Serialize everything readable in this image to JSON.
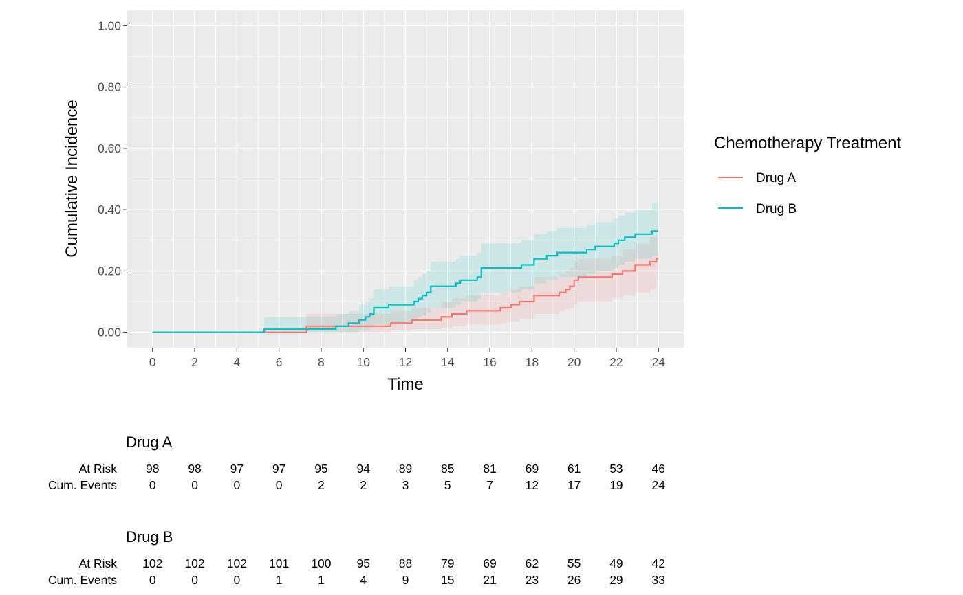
{
  "chart_data": {
    "type": "line",
    "step": true,
    "xlabel": "Time",
    "ylabel": "Cumulative Incidence",
    "xlim": [
      -1.2,
      25.2
    ],
    "ylim": [
      -0.05,
      1.05
    ],
    "x_ticks": [
      0,
      2,
      4,
      6,
      8,
      10,
      12,
      14,
      16,
      18,
      20,
      22,
      24
    ],
    "x_tick_labels": [
      "0",
      "2",
      "4",
      "6",
      "8",
      "10",
      "12",
      "14",
      "16",
      "18",
      "20",
      "22",
      "24"
    ],
    "y_ticks": [
      0,
      0.2,
      0.4,
      0.6,
      0.8,
      1.0
    ],
    "y_tick_labels": [
      "0.00",
      "0.20",
      "0.40",
      "0.60",
      "0.80",
      "1.00"
    ],
    "grid": true,
    "background": "#ebebeb",
    "legend": {
      "title": "Chemotherapy Treatment",
      "position": "right"
    },
    "series": [
      {
        "name": "Drug A",
        "color": "#f8766d",
        "x": [
          0,
          7.3,
          8.9,
          11.3,
          12.3,
          13.7,
          14.2,
          14.9,
          16.5,
          17.0,
          17.4,
          18.1,
          19.3,
          19.6,
          19.8,
          20.0,
          20.2,
          21.8,
          22.3,
          22.9,
          23.6,
          23.9
        ],
        "y": [
          0,
          0.02,
          0.02,
          0.03,
          0.04,
          0.05,
          0.06,
          0.07,
          0.08,
          0.09,
          0.1,
          0.12,
          0.13,
          0.14,
          0.15,
          0.17,
          0.18,
          0.19,
          0.2,
          0.22,
          0.23,
          0.24
        ],
        "lower": [
          0,
          0.0,
          0.0,
          0.005,
          0.01,
          0.015,
          0.02,
          0.025,
          0.03,
          0.035,
          0.045,
          0.06,
          0.07,
          0.075,
          0.08,
          0.09,
          0.1,
          0.11,
          0.12,
          0.13,
          0.14,
          0.17
        ],
        "upper": [
          0,
          0.06,
          0.06,
          0.07,
          0.08,
          0.1,
          0.11,
          0.12,
          0.13,
          0.14,
          0.15,
          0.18,
          0.19,
          0.2,
          0.21,
          0.23,
          0.24,
          0.25,
          0.27,
          0.29,
          0.31,
          0.32
        ]
      },
      {
        "name": "Drug B",
        "color": "#00bfc4",
        "x": [
          0,
          5.3,
          8.7,
          9.3,
          9.8,
          10.1,
          10.3,
          10.5,
          11.2,
          12.4,
          12.6,
          12.8,
          13.0,
          13.2,
          14.4,
          14.6,
          15.4,
          15.6,
          17.5,
          18.1,
          18.7,
          19.2,
          20.6,
          21.0,
          21.9,
          22.1,
          22.4,
          22.9,
          23.7
        ],
        "y": [
          0,
          0.01,
          0.02,
          0.03,
          0.04,
          0.05,
          0.06,
          0.08,
          0.09,
          0.1,
          0.11,
          0.12,
          0.13,
          0.15,
          0.16,
          0.17,
          0.18,
          0.21,
          0.22,
          0.24,
          0.25,
          0.26,
          0.27,
          0.28,
          0.29,
          0.3,
          0.31,
          0.32,
          0.33
        ],
        "lower": [
          0,
          0.0,
          0.0,
          0.0,
          0.005,
          0.01,
          0.015,
          0.025,
          0.035,
          0.045,
          0.05,
          0.055,
          0.065,
          0.08,
          0.09,
          0.1,
          0.11,
          0.13,
          0.14,
          0.16,
          0.17,
          0.18,
          0.19,
          0.2,
          0.21,
          0.22,
          0.23,
          0.24,
          0.25
        ],
        "upper": [
          0,
          0.05,
          0.06,
          0.07,
          0.09,
          0.1,
          0.11,
          0.14,
          0.15,
          0.17,
          0.18,
          0.19,
          0.2,
          0.23,
          0.24,
          0.25,
          0.26,
          0.29,
          0.3,
          0.32,
          0.33,
          0.34,
          0.35,
          0.36,
          0.37,
          0.38,
          0.39,
          0.4,
          0.42
        ]
      }
    ]
  },
  "risk_table": {
    "times": [
      0,
      2,
      4,
      6,
      8,
      10,
      12,
      14,
      16,
      18,
      20,
      22,
      24
    ],
    "row_labels": [
      "At Risk",
      "Cum. Events"
    ],
    "groups": [
      {
        "name": "Drug A",
        "at_risk": [
          "98",
          "98",
          "97",
          "97",
          "95",
          "94",
          "89",
          "85",
          "81",
          "69",
          "61",
          "53",
          "46"
        ],
        "cum_events": [
          "0",
          "0",
          "0",
          "0",
          "2",
          "2",
          "3",
          "5",
          "7",
          "12",
          "17",
          "19",
          "24"
        ]
      },
      {
        "name": "Drug B",
        "at_risk": [
          "102",
          "102",
          "102",
          "101",
          "100",
          "95",
          "88",
          "79",
          "69",
          "62",
          "55",
          "49",
          "42"
        ],
        "cum_events": [
          "0",
          "0",
          "0",
          "1",
          "1",
          "4",
          "9",
          "15",
          "21",
          "23",
          "26",
          "29",
          "33"
        ]
      }
    ]
  }
}
